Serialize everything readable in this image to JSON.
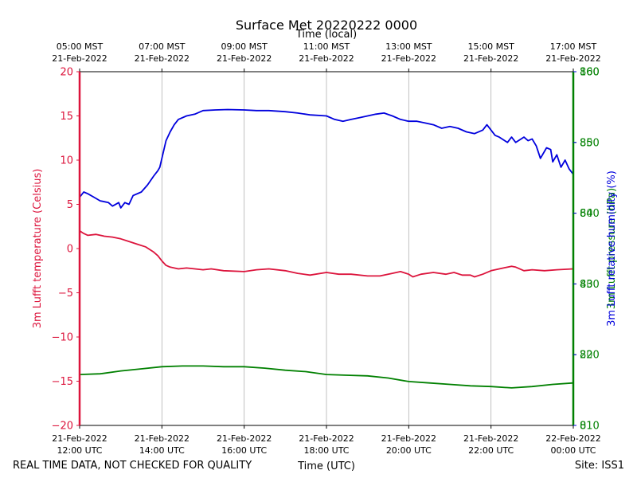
{
  "chart_data": {
    "type": "line",
    "title": "Surface Met 20220222 0000",
    "xlabel": "Time (UTC)",
    "x2label": "Time (local)",
    "footer_left": "REAL TIME DATA, NOT CHECKED FOR QUALITY",
    "footer_right": "Site: ISS1",
    "xlim": [
      12.0,
      24.0
    ],
    "x_ticks": [
      {
        "value": 12,
        "line1": "21-Feb-2022",
        "line2": "12:00 UTC"
      },
      {
        "value": 14,
        "line1": "21-Feb-2022",
        "line2": "14:00 UTC"
      },
      {
        "value": 16,
        "line1": "21-Feb-2022",
        "line2": "16:00 UTC"
      },
      {
        "value": 18,
        "line1": "21-Feb-2022",
        "line2": "18:00 UTC"
      },
      {
        "value": 20,
        "line1": "21-Feb-2022",
        "line2": "20:00 UTC"
      },
      {
        "value": 22,
        "line1": "21-Feb-2022",
        "line2": "22:00 UTC"
      },
      {
        "value": 24,
        "line1": "22-Feb-2022",
        "line2": "00:00 UTC"
      }
    ],
    "x2_ticks": [
      {
        "value": 12,
        "line1": "05:00 MST",
        "line2": "21-Feb-2022"
      },
      {
        "value": 14,
        "line1": "07:00 MST",
        "line2": "21-Feb-2022"
      },
      {
        "value": 16,
        "line1": "09:00 MST",
        "line2": "21-Feb-2022"
      },
      {
        "value": 18,
        "line1": "11:00 MST",
        "line2": "21-Feb-2022"
      },
      {
        "value": 20,
        "line1": "13:00 MST",
        "line2": "21-Feb-2022"
      },
      {
        "value": 22,
        "line1": "15:00 MST",
        "line2": "21-Feb-2022"
      },
      {
        "value": 24,
        "line1": "17:00 MST",
        "line2": "21-Feb-2022"
      }
    ],
    "axes": [
      {
        "id": "temp",
        "label": "3m Lufft temperature (Celsius)",
        "color": "#dc143c",
        "ylim": [
          -20,
          20
        ],
        "ticks": [
          "20",
          "15",
          "10",
          "5",
          "0",
          "−5",
          "−10",
          "−15",
          "−20"
        ]
      },
      {
        "id": "rh",
        "label": "3m Lufft relative humidity (%)",
        "color": "#0000dd",
        "ylim": [
          0,
          100
        ],
        "ticks": [
          "100",
          "80",
          "60",
          "40",
          "20",
          "0"
        ]
      },
      {
        "id": "pres",
        "label": "3m Lufft pressure (hPa)",
        "color": "#008000",
        "ylim": [
          810,
          860
        ],
        "ticks": [
          "860",
          "850",
          "840",
          "830",
          "820",
          "810"
        ]
      }
    ],
    "grid": "vertical",
    "series": [
      {
        "axis": "temp",
        "color": "#dc143c",
        "x": [
          12.0,
          12.1,
          12.2,
          12.4,
          12.6,
          12.8,
          13.0,
          13.2,
          13.4,
          13.6,
          13.8,
          13.9,
          14.0,
          14.1,
          14.2,
          14.4,
          14.6,
          14.8,
          15.0,
          15.2,
          15.5,
          16.0,
          16.3,
          16.6,
          17.0,
          17.3,
          17.6,
          18.0,
          18.3,
          18.6,
          19.0,
          19.3,
          19.6,
          19.8,
          20.0,
          20.1,
          20.3,
          20.6,
          20.9,
          21.1,
          21.3,
          21.5,
          21.6,
          21.8,
          22.0,
          22.3,
          22.5,
          22.6,
          22.8,
          23.0,
          23.3,
          23.6,
          24.0
        ],
        "y": [
          2.0,
          1.7,
          1.5,
          1.6,
          1.4,
          1.3,
          1.1,
          0.8,
          0.5,
          0.2,
          -0.4,
          -0.8,
          -1.4,
          -1.9,
          -2.1,
          -2.3,
          -2.2,
          -2.3,
          -2.4,
          -2.3,
          -2.5,
          -2.6,
          -2.4,
          -2.3,
          -2.5,
          -2.8,
          -3.0,
          -2.7,
          -2.9,
          -2.9,
          -3.1,
          -3.1,
          -2.8,
          -2.6,
          -2.9,
          -3.2,
          -2.9,
          -2.7,
          -2.9,
          -2.7,
          -3.0,
          -3.0,
          -3.2,
          -2.9,
          -2.5,
          -2.2,
          -2.0,
          -2.1,
          -2.5,
          -2.4,
          -2.5,
          -2.4,
          -2.3
        ]
      },
      {
        "axis": "rh",
        "color": "#0000dd",
        "x": [
          12.0,
          12.1,
          12.2,
          12.35,
          12.5,
          12.7,
          12.8,
          12.95,
          13.0,
          13.1,
          13.2,
          13.3,
          13.5,
          13.65,
          13.8,
          13.9,
          13.95,
          14.0,
          14.05,
          14.1,
          14.2,
          14.3,
          14.4,
          14.6,
          14.8,
          15.0,
          15.3,
          15.6,
          16.0,
          16.3,
          16.6,
          17.0,
          17.3,
          17.6,
          18.0,
          18.2,
          18.4,
          18.6,
          18.8,
          19.0,
          19.2,
          19.4,
          19.6,
          19.8,
          20.0,
          20.2,
          20.4,
          20.6,
          20.8,
          21.0,
          21.2,
          21.4,
          21.6,
          21.8,
          21.9,
          22.0,
          22.1,
          22.2,
          22.4,
          22.5,
          22.6,
          22.8,
          22.9,
          23.0,
          23.1,
          23.2,
          23.35,
          23.45,
          23.5,
          23.6,
          23.7,
          23.8,
          23.9,
          24.0
        ],
        "y": [
          64.5,
          66.0,
          65.5,
          64.5,
          63.5,
          63.0,
          62.0,
          63.0,
          61.5,
          63.0,
          62.5,
          65.0,
          66.0,
          68.0,
          70.5,
          72.0,
          73.0,
          75.5,
          78.0,
          80.5,
          83.0,
          85.0,
          86.5,
          87.5,
          88.0,
          89.0,
          89.2,
          89.3,
          89.2,
          89.0,
          89.0,
          88.7,
          88.3,
          87.8,
          87.5,
          86.5,
          86.0,
          86.5,
          87.0,
          87.5,
          88.0,
          88.3,
          87.5,
          86.5,
          86.0,
          86.0,
          85.5,
          85.0,
          84.0,
          84.5,
          84.0,
          83.0,
          82.5,
          83.5,
          85.0,
          83.5,
          82.0,
          81.5,
          80.0,
          81.5,
          80.0,
          81.5,
          80.5,
          81.0,
          79.0,
          75.5,
          78.5,
          78.0,
          74.5,
          76.5,
          73.0,
          75.0,
          72.5,
          71.0
        ]
      },
      {
        "axis": "pres",
        "color": "#008000",
        "x": [
          12.0,
          12.5,
          13.0,
          13.5,
          14.0,
          14.5,
          15.0,
          15.5,
          16.0,
          16.5,
          17.0,
          17.5,
          18.0,
          18.5,
          19.0,
          19.5,
          20.0,
          20.5,
          21.0,
          21.5,
          22.0,
          22.5,
          23.0,
          23.5,
          24.0
        ],
        "y": [
          817.2,
          817.3,
          817.7,
          818.0,
          818.3,
          818.4,
          818.4,
          818.3,
          818.3,
          818.1,
          817.8,
          817.6,
          817.2,
          817.1,
          817.0,
          816.7,
          816.2,
          816.0,
          815.8,
          815.6,
          815.5,
          815.3,
          815.5,
          815.8,
          816.0
        ]
      }
    ]
  }
}
